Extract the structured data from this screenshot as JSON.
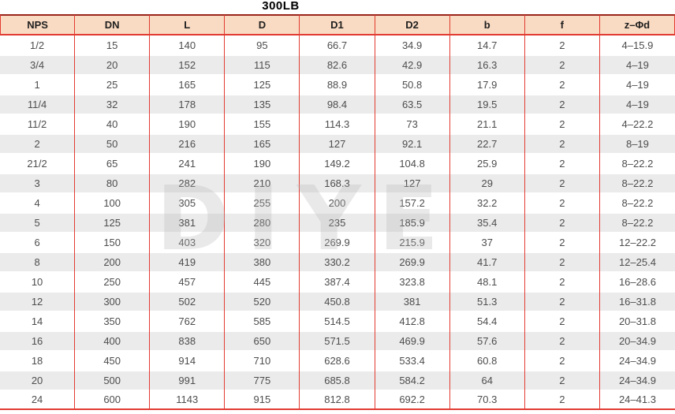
{
  "title": "300LB",
  "watermark": "DIYE",
  "colors": {
    "red": "#e23b32",
    "top_border": "#9b241c",
    "header_bg": "#f9dac2",
    "row_alt_bg": "#ebebeb",
    "header_text": "#1f1f1f",
    "cell_text": "#4d4d4d"
  },
  "table": {
    "columns": [
      "NPS",
      "DN",
      "L",
      "D",
      "D1",
      "D2",
      "b",
      "f",
      "z–Φd"
    ],
    "rows": [
      [
        "1/2",
        "15",
        "140",
        "95",
        "66.7",
        "34.9",
        "14.7",
        "2",
        "4–15.9"
      ],
      [
        "3/4",
        "20",
        "152",
        "115",
        "82.6",
        "42.9",
        "16.3",
        "2",
        "4–19"
      ],
      [
        "1",
        "25",
        "165",
        "125",
        "88.9",
        "50.8",
        "17.9",
        "2",
        "4–19"
      ],
      [
        "11/4",
        "32",
        "178",
        "135",
        "98.4",
        "63.5",
        "19.5",
        "2",
        "4–19"
      ],
      [
        "11/2",
        "40",
        "190",
        "155",
        "114.3",
        "73",
        "21.1",
        "2",
        "4–22.2"
      ],
      [
        "2",
        "50",
        "216",
        "165",
        "127",
        "92.1",
        "22.7",
        "2",
        "8–19"
      ],
      [
        "21/2",
        "65",
        "241",
        "190",
        "149.2",
        "104.8",
        "25.9",
        "2",
        "8–22.2"
      ],
      [
        "3",
        "80",
        "282",
        "210",
        "168.3",
        "127",
        "29",
        "2",
        "8–22.2"
      ],
      [
        "4",
        "100",
        "305",
        "255",
        "200",
        "157.2",
        "32.2",
        "2",
        "8–22.2"
      ],
      [
        "5",
        "125",
        "381",
        "280",
        "235",
        "185.9",
        "35.4",
        "2",
        "8–22.2"
      ],
      [
        "6",
        "150",
        "403",
        "320",
        "269.9",
        "215.9",
        "37",
        "2",
        "12–22.2"
      ],
      [
        "8",
        "200",
        "419",
        "380",
        "330.2",
        "269.9",
        "41.7",
        "2",
        "12–25.4"
      ],
      [
        "10",
        "250",
        "457",
        "445",
        "387.4",
        "323.8",
        "48.1",
        "2",
        "16–28.6"
      ],
      [
        "12",
        "300",
        "502",
        "520",
        "450.8",
        "381",
        "51.3",
        "2",
        "16–31.8"
      ],
      [
        "14",
        "350",
        "762",
        "585",
        "514.5",
        "412.8",
        "54.4",
        "2",
        "20–31.8"
      ],
      [
        "16",
        "400",
        "838",
        "650",
        "571.5",
        "469.9",
        "57.6",
        "2",
        "20–34.9"
      ],
      [
        "18",
        "450",
        "914",
        "710",
        "628.6",
        "533.4",
        "60.8",
        "2",
        "24–34.9"
      ],
      [
        "20",
        "500",
        "991",
        "775",
        "685.8",
        "584.2",
        "64",
        "2",
        "24–34.9"
      ],
      [
        "24",
        "600",
        "1143",
        "915",
        "812.8",
        "692.2",
        "70.3",
        "2",
        "24–41.3"
      ]
    ]
  }
}
